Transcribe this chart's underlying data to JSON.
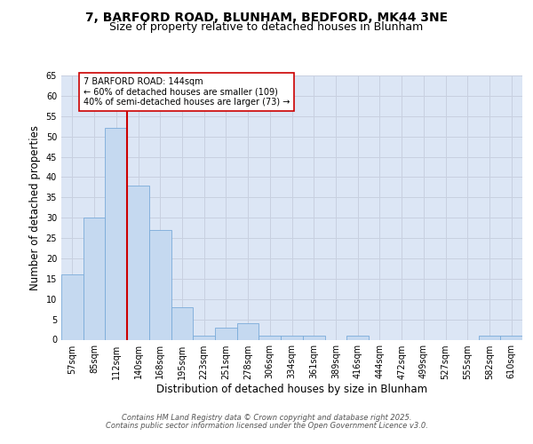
{
  "title_line1": "7, BARFORD ROAD, BLUNHAM, BEDFORD, MK44 3NE",
  "title_line2": "Size of property relative to detached houses in Blunham",
  "xlabel": "Distribution of detached houses by size in Blunham",
  "ylabel": "Number of detached properties",
  "categories": [
    "57sqm",
    "85sqm",
    "112sqm",
    "140sqm",
    "168sqm",
    "195sqm",
    "223sqm",
    "251sqm",
    "278sqm",
    "306sqm",
    "334sqm",
    "361sqm",
    "389sqm",
    "416sqm",
    "444sqm",
    "472sqm",
    "499sqm",
    "527sqm",
    "555sqm",
    "582sqm",
    "610sqm"
  ],
  "values": [
    16,
    30,
    52,
    38,
    27,
    8,
    1,
    3,
    4,
    1,
    1,
    1,
    0,
    1,
    0,
    0,
    0,
    0,
    0,
    1,
    1
  ],
  "bar_color": "#c5d9f0",
  "bar_edge_color": "#7aabda",
  "vline_x_index": 3,
  "vline_color": "#cc0000",
  "annotation_text": "7 BARFORD ROAD: 144sqm\n← 60% of detached houses are smaller (109)\n40% of semi-detached houses are larger (73) →",
  "annotation_box_color": "#ffffff",
  "annotation_box_edge_color": "#cc0000",
  "ylim": [
    0,
    65
  ],
  "yticks": [
    0,
    5,
    10,
    15,
    20,
    25,
    30,
    35,
    40,
    45,
    50,
    55,
    60,
    65
  ],
  "grid_color": "#c8d0e0",
  "background_color": "#dce6f5",
  "fig_background": "#ffffff",
  "footer_line1": "Contains HM Land Registry data © Crown copyright and database right 2025.",
  "footer_line2": "Contains public sector information licensed under the Open Government Licence v3.0.",
  "title_fontsize": 10,
  "subtitle_fontsize": 9,
  "axis_label_fontsize": 8.5,
  "tick_fontsize": 7,
  "annotation_fontsize": 7,
  "footer_fontsize": 6
}
